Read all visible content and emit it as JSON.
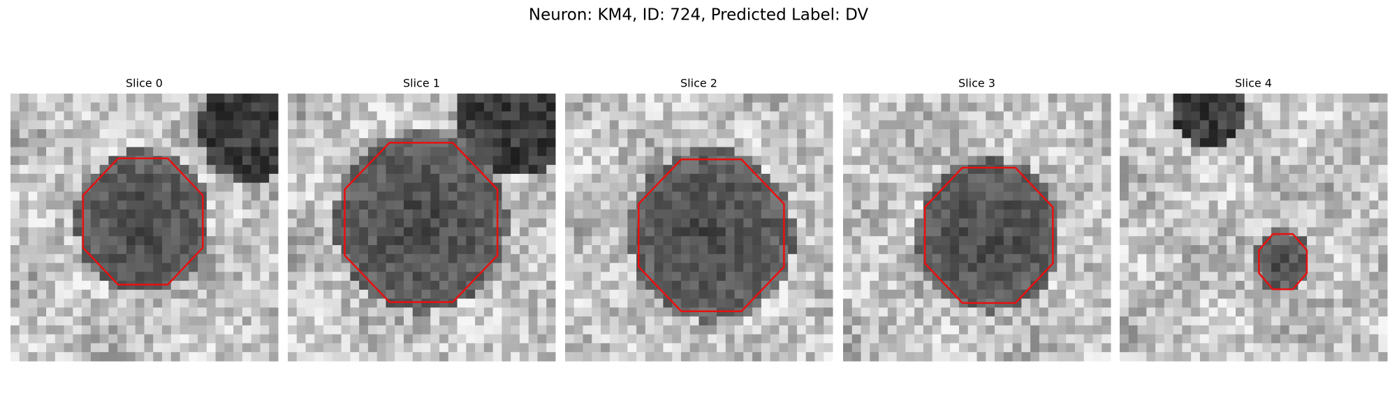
{
  "header": {
    "title": "Neuron: KM4, ID: 724, Predicted Label: DV"
  },
  "panels": [
    {
      "title": "Slice 0"
    },
    {
      "title": "Slice 1"
    },
    {
      "title": "Slice 2"
    },
    {
      "title": "Slice 3"
    },
    {
      "title": "Slice 4"
    }
  ]
}
